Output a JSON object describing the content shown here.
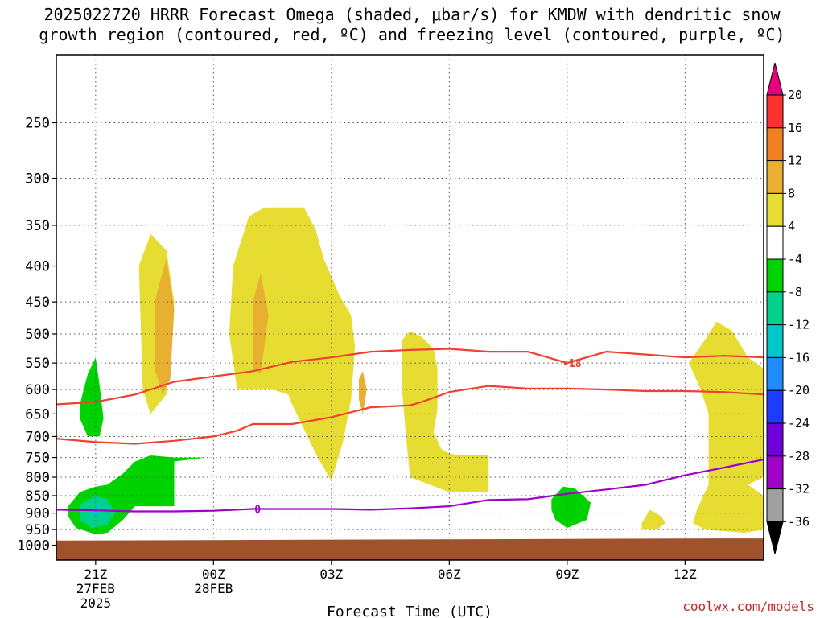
{
  "title_line1": "2025022720 HRRR Forecast Omega (shaded, μbar/s) for KMDW with dendritic snow",
  "title_line2": "growth region (contoured, red, ºC) and freezing level (contoured, purple, ºC)",
  "credit": "coolwx.com/models",
  "chart_data": {
    "type": "heatmap",
    "title": "2025022720 HRRR Forecast Omega (shaded, μbar/s) for KMDW with dendritic snow growth region (contoured, red, ºC) and freezing level (contoured, purple, ºC)",
    "xlabel": "Forecast Time (UTC)",
    "ylabel": "",
    "xlim": [
      20,
      38
    ],
    "ylim": [
      1050,
      200
    ],
    "y_scale": "log-pressure",
    "grid": true,
    "x_ticks": [
      {
        "h": 21,
        "label": "21Z",
        "sub1": "27FEB",
        "sub2": "2025"
      },
      {
        "h": 24,
        "label": "00Z",
        "sub1": "28FEB",
        "sub2": ""
      },
      {
        "h": 27,
        "label": "03Z",
        "sub1": "",
        "sub2": ""
      },
      {
        "h": 30,
        "label": "06Z",
        "sub1": "",
        "sub2": ""
      },
      {
        "h": 33,
        "label": "09Z",
        "sub1": "",
        "sub2": ""
      },
      {
        "h": 36,
        "label": "12Z",
        "sub1": "",
        "sub2": ""
      }
    ],
    "y_ticks": [
      250,
      300,
      350,
      400,
      450,
      500,
      550,
      600,
      650,
      700,
      750,
      800,
      850,
      900,
      950,
      1000
    ],
    "colorbar": {
      "labels": [
        "20",
        "16",
        "12",
        "8",
        "4",
        "-4",
        "-8",
        "-12",
        "-16",
        "-20",
        "-24",
        "-28",
        "-32",
        "-36"
      ],
      "colors": [
        "#ff3030",
        "#f08020",
        "#e8b030",
        "#e6dc32",
        "#ffffff",
        "#00d200",
        "#00d28c",
        "#00c8c8",
        "#1e8cff",
        "#1e3cff",
        "#6e00dc",
        "#a000c8",
        "#a0a0a0"
      ],
      "top_color": "#e6007e",
      "bottom_color": "#000000"
    },
    "ground": {
      "color": "#a0522d",
      "pressure_top": [
        [
          20,
          985
        ],
        [
          37,
          978
        ],
        [
          38,
          978
        ]
      ]
    },
    "omega_regions": [
      {
        "value": 6,
        "color": "#e6dc32",
        "polygon": [
          [
            22.1,
            400
          ],
          [
            22.4,
            360
          ],
          [
            22.8,
            380
          ],
          [
            23.0,
            450
          ],
          [
            22.8,
            610
          ],
          [
            22.4,
            650
          ],
          [
            22.2,
            600
          ]
        ]
      },
      {
        "value": 10,
        "color": "#e8b030",
        "polygon": [
          [
            22.5,
            450
          ],
          [
            22.8,
            390
          ],
          [
            23.0,
            460
          ],
          [
            22.9,
            580
          ],
          [
            22.7,
            610
          ],
          [
            22.5,
            560
          ]
        ]
      },
      {
        "value": 6,
        "color": "#e6dc32",
        "polygon": [
          [
            24.5,
            400
          ],
          [
            24.9,
            340
          ],
          [
            25.3,
            330
          ],
          [
            26.3,
            330
          ],
          [
            26.6,
            355
          ],
          [
            26.8,
            390
          ],
          [
            27.2,
            440
          ],
          [
            27.5,
            470
          ],
          [
            27.6,
            520
          ],
          [
            27.5,
            620
          ],
          [
            27.3,
            710
          ],
          [
            27.0,
            810
          ],
          [
            26.6,
            740
          ],
          [
            26.0,
            630
          ],
          [
            25.9,
            610
          ],
          [
            25.5,
            600
          ],
          [
            24.6,
            600
          ],
          [
            24.4,
            500
          ]
        ]
      },
      {
        "value": 10,
        "color": "#e8b030",
        "polygon": [
          [
            25.0,
            450
          ],
          [
            25.2,
            410
          ],
          [
            25.4,
            470
          ],
          [
            25.2,
            570
          ],
          [
            25.0,
            560
          ]
        ]
      },
      {
        "value": 10,
        "color": "#e8b030",
        "polygon": [
          [
            27.7,
            580
          ],
          [
            27.8,
            565
          ],
          [
            27.9,
            600
          ],
          [
            27.8,
            650
          ],
          [
            27.7,
            620
          ]
        ]
      },
      {
        "value": 6,
        "color": "#e6dc32",
        "polygon": [
          [
            28.8,
            510
          ],
          [
            29.0,
            495
          ],
          [
            29.3,
            505
          ],
          [
            29.6,
            525
          ],
          [
            29.7,
            560
          ],
          [
            29.7,
            640
          ],
          [
            29.6,
            690
          ],
          [
            29.8,
            730
          ],
          [
            30.0,
            740
          ],
          [
            30.3,
            745
          ],
          [
            31.0,
            745
          ],
          [
            31.0,
            840
          ],
          [
            30.0,
            840
          ],
          [
            29.0,
            800
          ],
          [
            28.9,
            700
          ],
          [
            28.8,
            600
          ]
        ]
      },
      {
        "value": 6,
        "color": "#e6dc32",
        "polygon": [
          [
            36.1,
            550
          ],
          [
            36.5,
            510
          ],
          [
            36.8,
            480
          ],
          [
            37.2,
            495
          ],
          [
            37.6,
            540
          ],
          [
            38.0,
            560
          ],
          [
            38.0,
            800
          ],
          [
            37.6,
            820
          ],
          [
            38.0,
            850
          ],
          [
            38.0,
            950
          ],
          [
            37.5,
            960
          ],
          [
            36.5,
            950
          ],
          [
            36.2,
            930
          ],
          [
            36.3,
            890
          ],
          [
            36.6,
            820
          ],
          [
            36.6,
            650
          ],
          [
            36.4,
            600
          ]
        ]
      },
      {
        "value": 6,
        "color": "#e6dc32",
        "polygon": [
          [
            34.9,
            930
          ],
          [
            35.1,
            890
          ],
          [
            35.4,
            910
          ],
          [
            35.5,
            930
          ],
          [
            35.3,
            950
          ],
          [
            34.9,
            950
          ]
        ]
      },
      {
        "value": -6,
        "color": "#00d200",
        "polygon": [
          [
            20.6,
            630
          ],
          [
            20.8,
            570
          ],
          [
            21.0,
            540
          ],
          [
            21.1,
            590
          ],
          [
            21.2,
            660
          ],
          [
            21.1,
            700
          ],
          [
            20.8,
            700
          ],
          [
            20.6,
            660
          ]
        ]
      },
      {
        "value": -6,
        "color": "#00d200",
        "polygon": [
          [
            20.3,
            880
          ],
          [
            20.6,
            840
          ],
          [
            21.0,
            825
          ],
          [
            21.3,
            820
          ],
          [
            21.7,
            790
          ],
          [
            22.0,
            760
          ],
          [
            22.4,
            745
          ],
          [
            23.0,
            750
          ],
          [
            23.8,
            750
          ],
          [
            23.0,
            760
          ],
          [
            23.0,
            880
          ],
          [
            22.4,
            880
          ],
          [
            22.0,
            880
          ],
          [
            21.7,
            920
          ],
          [
            21.3,
            960
          ],
          [
            21.0,
            965
          ],
          [
            20.5,
            945
          ],
          [
            20.3,
            910
          ]
        ]
      },
      {
        "value": -10,
        "color": "#00d28c",
        "polygon": [
          [
            20.6,
            875
          ],
          [
            21.0,
            850
          ],
          [
            21.3,
            860
          ],
          [
            21.5,
            900
          ],
          [
            21.3,
            935
          ],
          [
            20.9,
            945
          ],
          [
            20.6,
            920
          ]
        ]
      },
      {
        "value": -14,
        "color": "#00c8c8",
        "polygon": [
          [
            20.9,
            885
          ],
          [
            21.1,
            875
          ],
          [
            21.2,
            895
          ],
          [
            21.0,
            910
          ],
          [
            20.85,
            900
          ]
        ]
      },
      {
        "value": -6,
        "color": "#00d200",
        "polygon": [
          [
            32.6,
            860
          ],
          [
            32.9,
            825
          ],
          [
            33.2,
            830
          ],
          [
            33.6,
            870
          ],
          [
            33.5,
            920
          ],
          [
            33.0,
            945
          ],
          [
            32.7,
            920
          ],
          [
            32.6,
            890
          ]
        ]
      }
    ],
    "contours": [
      {
        "name": "-18",
        "color": "#f04030",
        "level": "-18",
        "label_at": [
          33.0,
          550
        ],
        "points": [
          [
            20,
            630
          ],
          [
            21,
            625
          ],
          [
            22,
            610
          ],
          [
            23,
            585
          ],
          [
            24,
            575
          ],
          [
            25,
            565
          ],
          [
            26,
            548
          ],
          [
            27,
            540
          ],
          [
            28,
            530
          ],
          [
            29,
            527
          ],
          [
            30,
            525
          ],
          [
            31,
            530
          ],
          [
            32,
            530
          ],
          [
            33,
            550
          ],
          [
            34,
            530
          ],
          [
            35,
            535
          ],
          [
            36,
            540
          ],
          [
            37,
            537
          ],
          [
            38,
            540
          ]
        ]
      },
      {
        "name": "-12",
        "color": "#f04030",
        "level": "-12",
        "label_at": null,
        "points": [
          [
            20,
            705
          ],
          [
            21,
            713
          ],
          [
            22,
            717
          ],
          [
            23,
            710
          ],
          [
            24,
            700
          ],
          [
            24.6,
            687
          ],
          [
            25.0,
            672
          ],
          [
            26.0,
            672
          ],
          [
            27.0,
            657
          ],
          [
            28.0,
            636
          ],
          [
            29.0,
            632
          ],
          [
            29.3,
            625
          ],
          [
            30.0,
            605
          ],
          [
            31.0,
            593
          ],
          [
            32.0,
            598
          ],
          [
            33.0,
            598
          ],
          [
            34.0,
            600
          ],
          [
            35.0,
            603
          ],
          [
            36.0,
            603
          ],
          [
            37.0,
            605
          ],
          [
            38.0,
            610
          ]
        ]
      },
      {
        "name": "0",
        "color": "#a000c8",
        "level": "0",
        "label_at": [
          25.0,
          888
        ],
        "points": [
          [
            20,
            890
          ],
          [
            21,
            892
          ],
          [
            22,
            895
          ],
          [
            23,
            895
          ],
          [
            24,
            893
          ],
          [
            25,
            888
          ],
          [
            26,
            888
          ],
          [
            27,
            888
          ],
          [
            28,
            890
          ],
          [
            29,
            886
          ],
          [
            30,
            880
          ],
          [
            31,
            862
          ],
          [
            32,
            860
          ],
          [
            33,
            845
          ],
          [
            34,
            833
          ],
          [
            35,
            820
          ],
          [
            36,
            795
          ],
          [
            37,
            775
          ],
          [
            38,
            755
          ]
        ]
      }
    ]
  }
}
